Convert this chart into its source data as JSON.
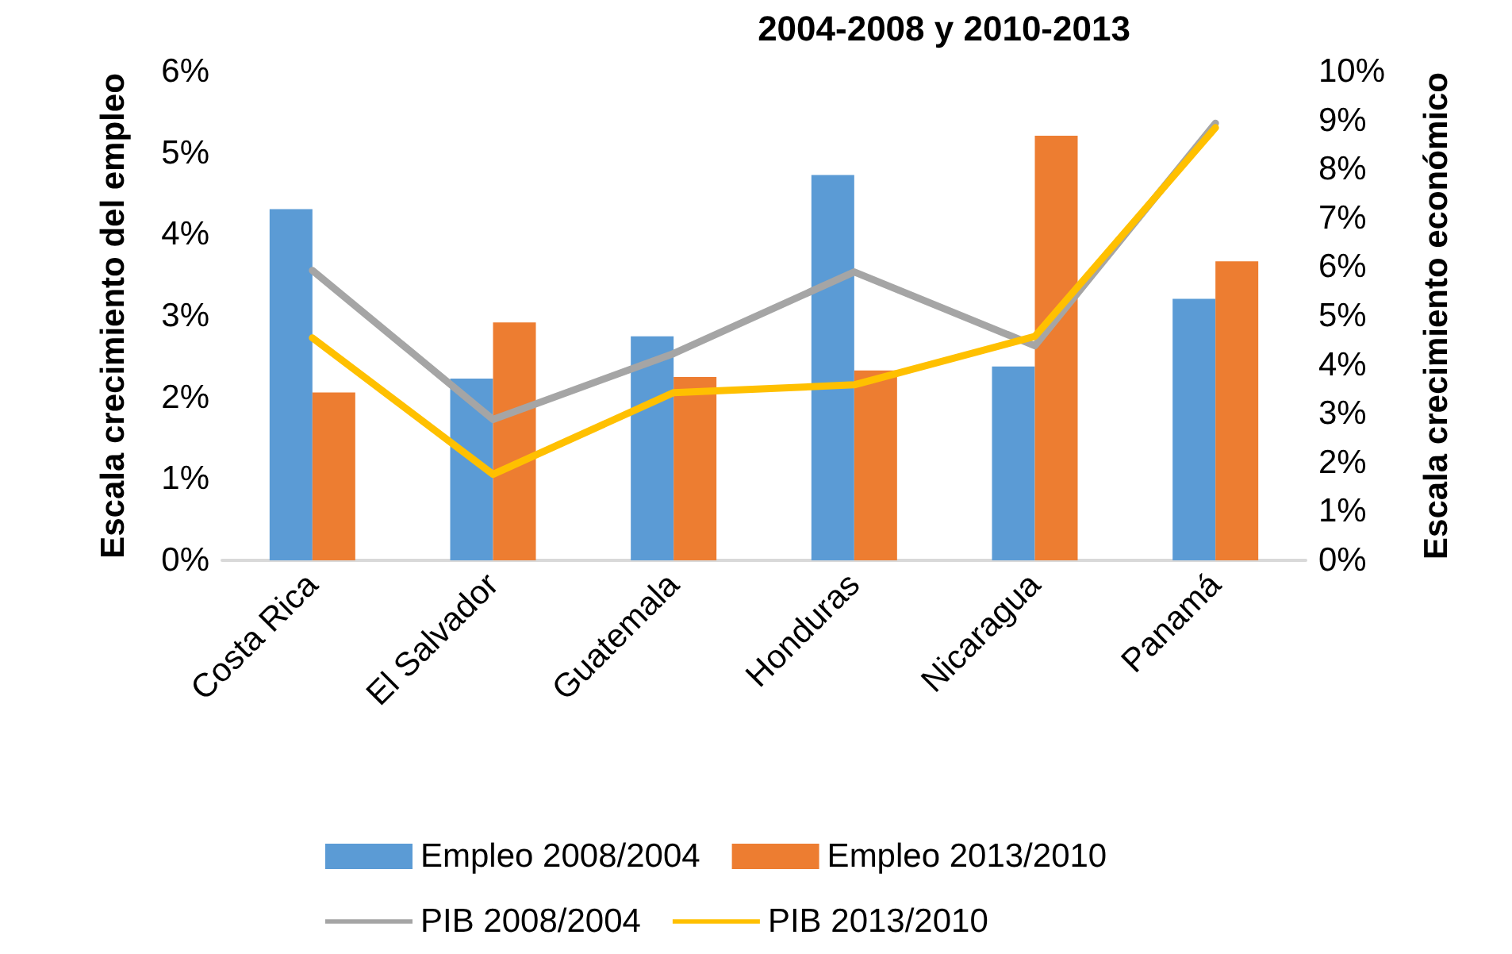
{
  "chart_data": {
    "type": "bar",
    "title": "2004-2008 y 2010-2013",
    "ylabel": "Escala crecimiento del empleo",
    "y2label": "Escala crecimiento económico",
    "categories": [
      "Costa Rica",
      "El Salvador",
      "Guatemala",
      "Honduras",
      "Nicaragua",
      "Panamá"
    ],
    "series": [
      {
        "name": "Empleo 2008/2004",
        "color": "#5b9bd5",
        "values": [
          4.31,
          2.23,
          2.75,
          4.73,
          2.38,
          3.21
        ]
      },
      {
        "name": "Empleo 2013/2010",
        "color": "#ed7d31",
        "values": [
          2.06,
          2.92,
          2.25,
          2.33,
          5.21,
          3.67
        ]
      },
      {
        "name": "PIB 2008/2004",
        "type": "line",
        "axis": "y2",
        "color": "#a5a5a5",
        "values": [
          5.93,
          2.88,
          4.23,
          5.9,
          4.39,
          8.94
        ]
      },
      {
        "name": "PIB 2013/2010",
        "type": "line",
        "axis": "y2",
        "color": "#ffc000",
        "values": [
          4.55,
          1.76,
          3.43,
          3.59,
          4.58,
          8.85
        ]
      }
    ],
    "ylim": [
      0,
      6
    ],
    "yticks": [
      {
        "value": 0,
        "label": "0%"
      },
      {
        "value": 1,
        "label": "1%"
      },
      {
        "value": 2,
        "label": "2%"
      },
      {
        "value": 3,
        "label": "3%"
      },
      {
        "value": 4,
        "label": "4%"
      },
      {
        "value": 5,
        "label": "5%"
      },
      {
        "value": 6,
        "label": "6%"
      }
    ],
    "y2lim": [
      0,
      10
    ],
    "y2ticks": [
      {
        "value": 0,
        "label": "0%"
      },
      {
        "value": 1,
        "label": "1%"
      },
      {
        "value": 2,
        "label": "2%"
      },
      {
        "value": 3,
        "label": "3%"
      },
      {
        "value": 4,
        "label": "4%"
      },
      {
        "value": 5,
        "label": "5%"
      },
      {
        "value": 6,
        "label": "6%"
      },
      {
        "value": 7,
        "label": "7%"
      },
      {
        "value": 8,
        "label": "8%"
      },
      {
        "value": 9,
        "label": "9%"
      },
      {
        "value": 10,
        "label": "10%"
      }
    ],
    "grid": false,
    "legend": "bottom",
    "marker": "none",
    "line_style": "solid"
  }
}
